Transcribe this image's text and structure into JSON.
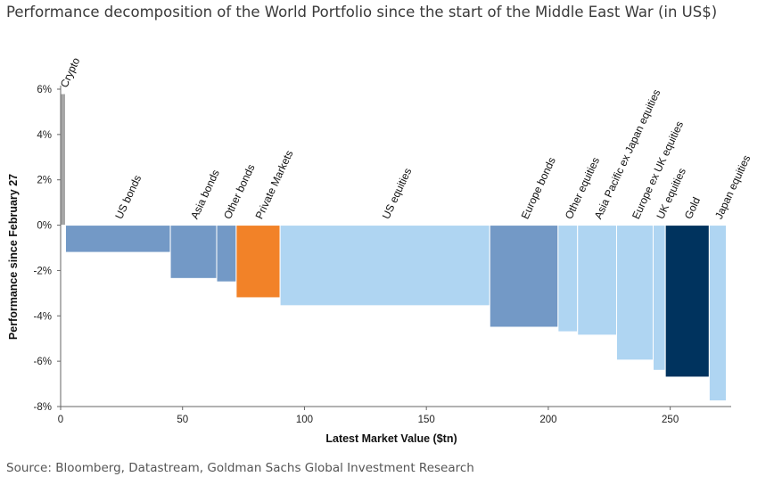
{
  "title": "Performance decomposition of the World Portfolio since the start of the Middle East War (in US$)",
  "source": "Source: Bloomberg, Datastream, Goldman Sachs Global Investment Research",
  "colors": {
    "bonds": "#7399c6",
    "equities": "#afd5f2",
    "private": "#f28228",
    "gold": "#00335e",
    "crypto": "#a6a6a6"
  },
  "chart_data": {
    "type": "bar",
    "title": "Performance decomposition of the World Portfolio since the start of the Middle East War (in US$)",
    "xlabel": "Latest Market Value ($tn)",
    "ylabel": "Performance since February 27",
    "xlim": [
      0,
      275
    ],
    "ylim": [
      -8,
      6
    ],
    "xticks": [
      0,
      50,
      100,
      150,
      200,
      250
    ],
    "yticks": [
      6,
      4,
      2,
      0,
      -2,
      -4,
      -6,
      -8
    ],
    "xtick_labels": [
      "0",
      "50",
      "100",
      "150",
      "200",
      "250"
    ],
    "ytick_labels": [
      "6%",
      "4%",
      "2%",
      "0%",
      "-2%",
      "-4%",
      "-6%",
      "-8%"
    ],
    "note": "Bar width is proportional to latest market value ($tn); bar height is performance (%).",
    "bars": [
      {
        "label": "Crypto",
        "start": 0,
        "end": 2,
        "value": 5.8,
        "group": "crypto"
      },
      {
        "label": "US bonds",
        "start": 2,
        "end": 45,
        "value": -1.2,
        "group": "bonds"
      },
      {
        "label": "Asia bonds",
        "start": 45,
        "end": 64,
        "value": -2.35,
        "group": "bonds"
      },
      {
        "label": "Other bonds",
        "start": 64,
        "end": 72,
        "value": -2.5,
        "group": "bonds"
      },
      {
        "label": "Private Markets",
        "start": 72,
        "end": 90,
        "value": -3.2,
        "group": "private"
      },
      {
        "label": "US equities",
        "start": 90,
        "end": 176,
        "value": -3.55,
        "group": "equities"
      },
      {
        "label": "Europe bonds",
        "start": 176,
        "end": 204,
        "value": -4.5,
        "group": "bonds"
      },
      {
        "label": "Other equities",
        "start": 204,
        "end": 212,
        "value": -4.7,
        "group": "equities"
      },
      {
        "label": "Asia Pacific ex Japan equities",
        "start": 212,
        "end": 228,
        "value": -4.85,
        "group": "equities"
      },
      {
        "label": "Europe ex UK equities",
        "start": 228,
        "end": 243,
        "value": -5.95,
        "group": "equities"
      },
      {
        "label": "UK equities",
        "start": 243,
        "end": 248,
        "value": -6.4,
        "group": "equities"
      },
      {
        "label": "Gold",
        "start": 248,
        "end": 266,
        "value": -6.7,
        "group": "gold"
      },
      {
        "label": "Japan equities",
        "start": 266,
        "end": 273,
        "value": -7.75,
        "group": "equities"
      }
    ]
  }
}
